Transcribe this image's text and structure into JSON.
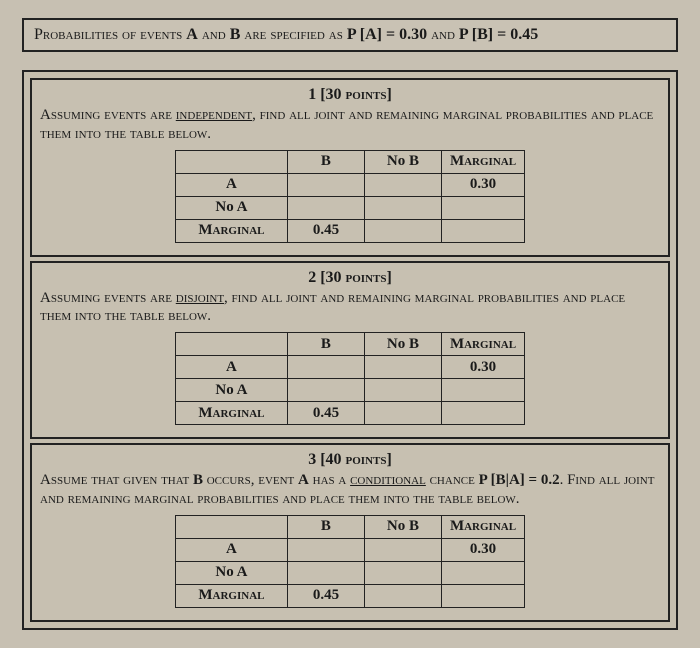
{
  "header": {
    "line": "Probabilities of events A and B are specified as P [A] = 0.30 and P [B] = 0.45"
  },
  "tableLabels": {
    "colB": "B",
    "colNoB": "No B",
    "colMarginal": "Marginal",
    "rowA": "A",
    "rowNoA": "No A",
    "rowMarginal": "Marginal"
  },
  "sections": [
    {
      "title_num": "1",
      "title_points": "[30 points]",
      "body_pre": "Assuming events are ",
      "body_keyword": "independent",
      "body_post": ", find all joint and remaining marginal probabilities and place them into the table below.",
      "cells": {
        "A_B": "",
        "A_NoB": "",
        "A_M": "0.30",
        "NoA_B": "",
        "NoA_NoB": "",
        "NoA_M": "",
        "M_B": "0.45",
        "M_NoB": "",
        "M_M": ""
      }
    },
    {
      "title_num": "2",
      "title_points": "[30 points]",
      "body_pre": "Assuming events are ",
      "body_keyword": "disjoint",
      "body_post": ", find all joint and remaining marginal probabilities and place them into the table below.",
      "cells": {
        "A_B": "",
        "A_NoB": "",
        "A_M": "0.30",
        "NoA_B": "",
        "NoA_NoB": "",
        "NoA_M": "",
        "M_B": "0.45",
        "M_NoB": "",
        "M_M": ""
      }
    },
    {
      "title_num": "3",
      "title_points": "[40 points]",
      "body_pre": "Assume that given that B occurs, event A has a ",
      "body_keyword": "conditional",
      "body_post": " chance P [B|A] = 0.2. Find all joint and remaining marginal probabilities and place them into the table below.",
      "cells": {
        "A_B": "",
        "A_NoB": "",
        "A_M": "0.30",
        "NoA_B": "",
        "NoA_NoB": "",
        "NoA_M": "",
        "M_B": "0.45",
        "M_NoB": "",
        "M_M": ""
      }
    }
  ]
}
